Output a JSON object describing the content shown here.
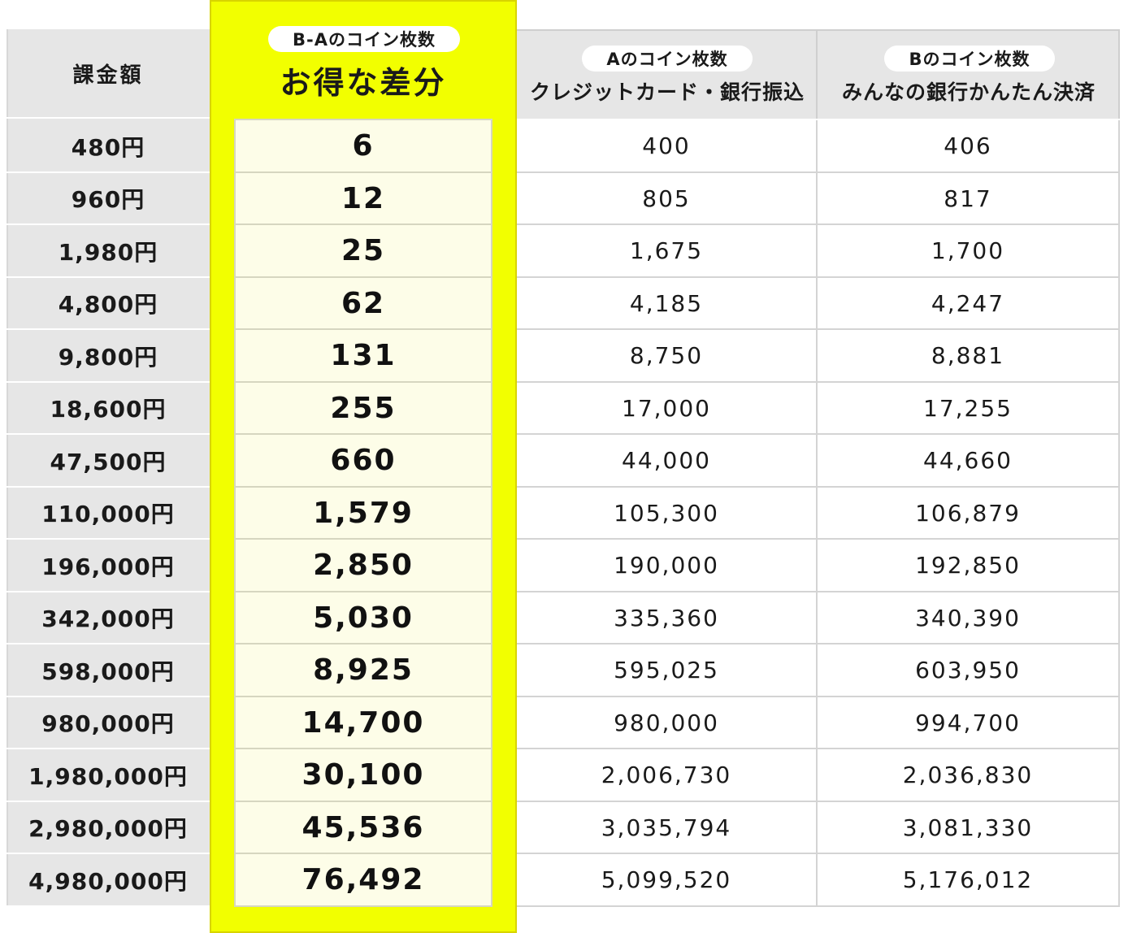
{
  "header": {
    "amount": "課金額",
    "diff_pill": "B-Aのコイン枚数",
    "diff_title": "お得な差分",
    "a_pill": "Aのコイン枚数",
    "a_sub": "クレジットカード・銀行振込",
    "b_pill": "Bのコイン枚数",
    "b_sub": "みんなの銀行かんたん決済"
  },
  "colors": {
    "highlight": "#f2ff00",
    "highlight_inner": "#fdfde8",
    "header_gray": "#e6e6e6"
  },
  "rows": [
    {
      "amount": "480円",
      "diff": "6",
      "a": "400",
      "b": "406"
    },
    {
      "amount": "960円",
      "diff": "12",
      "a": "805",
      "b": "817"
    },
    {
      "amount": "1,980円",
      "diff": "25",
      "a": "1,675",
      "b": "1,700"
    },
    {
      "amount": "4,800円",
      "diff": "62",
      "a": "4,185",
      "b": "4,247"
    },
    {
      "amount": "9,800円",
      "diff": "131",
      "a": "8,750",
      "b": "8,881"
    },
    {
      "amount": "18,600円",
      "diff": "255",
      "a": "17,000",
      "b": "17,255"
    },
    {
      "amount": "47,500円",
      "diff": "660",
      "a": "44,000",
      "b": "44,660"
    },
    {
      "amount": "110,000円",
      "diff": "1,579",
      "a": "105,300",
      "b": "106,879"
    },
    {
      "amount": "196,000円",
      "diff": "2,850",
      "a": "190,000",
      "b": "192,850"
    },
    {
      "amount": "342,000円",
      "diff": "5,030",
      "a": "335,360",
      "b": "340,390"
    },
    {
      "amount": "598,000円",
      "diff": "8,925",
      "a": "595,025",
      "b": "603,950"
    },
    {
      "amount": "980,000円",
      "diff": "14,700",
      "a": "980,000",
      "b": "994,700"
    },
    {
      "amount": "1,980,000円",
      "diff": "30,100",
      "a": "2,006,730",
      "b": "2,036,830"
    },
    {
      "amount": "2,980,000円",
      "diff": "45,536",
      "a": "3,035,794",
      "b": "3,081,330"
    },
    {
      "amount": "4,980,000円",
      "diff": "76,492",
      "a": "5,099,520",
      "b": "5,176,012"
    }
  ]
}
